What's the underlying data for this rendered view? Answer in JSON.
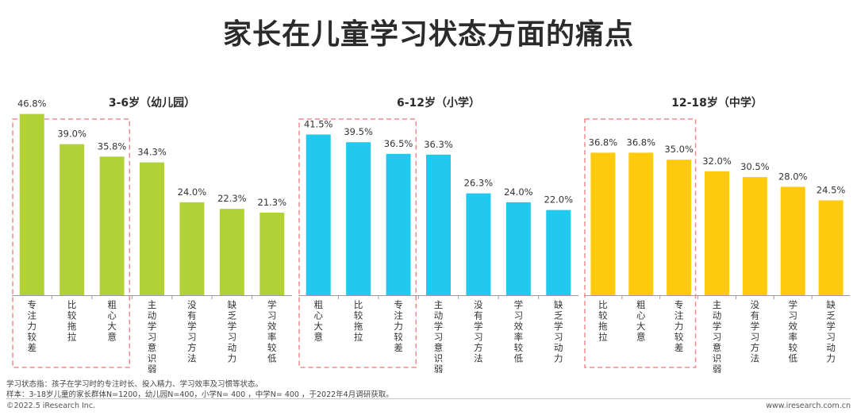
{
  "title": "家长在儿童学习状态方面的痛点",
  "chart_data": [
    {
      "type": "bar",
      "title": "3-6岁（幼儿园）",
      "color": "#b1d136",
      "highlight_count": 3,
      "ylim": [
        0,
        50
      ],
      "categories": [
        "专注力较差",
        "比较拖拉",
        "粗心大意",
        "主动学习意识弱",
        "没有学习方法",
        "缺乏学习动力",
        "学习效率较低"
      ],
      "values": [
        46.8,
        39.0,
        35.8,
        34.3,
        24.0,
        22.3,
        21.3
      ],
      "labels": [
        "46.8%",
        "39.0%",
        "35.8%",
        "34.3%",
        "24.0%",
        "22.3%",
        "21.3%"
      ]
    },
    {
      "type": "bar",
      "title": "6-12岁（小学）",
      "color": "#21c9ef",
      "highlight_count": 3,
      "ylim": [
        0,
        50
      ],
      "categories": [
        "粗心大意",
        "比较拖拉",
        "专注力较差",
        "主动学习意识弱",
        "没有学习方法",
        "学习效率较低",
        "缺乏学习动力"
      ],
      "values": [
        41.5,
        39.5,
        36.5,
        36.3,
        26.3,
        24.0,
        22.0
      ],
      "labels": [
        "41.5%",
        "39.5%",
        "36.5%",
        "36.3%",
        "26.3%",
        "24.0%",
        "22.0%"
      ]
    },
    {
      "type": "bar",
      "title": "12-18岁（中学）",
      "color": "#ffc90e",
      "highlight_count": 3,
      "ylim": [
        0,
        50
      ],
      "categories": [
        "比较拖拉",
        "粗心大意",
        "专注力较差",
        "主动学习意识弱",
        "没有学习方法",
        "学习效率较低",
        "缺乏学习动力"
      ],
      "values": [
        36.8,
        36.8,
        35.0,
        32.0,
        30.5,
        28.0,
        24.5
      ],
      "labels": [
        "36.8%",
        "36.8%",
        "35.0%",
        "32.0%",
        "30.5%",
        "28.0%",
        "24.5%"
      ]
    }
  ],
  "notes": {
    "definition": "学习状态指：孩子在学习时的专注时长、投入精力、学习效率及习惯等状态。",
    "sample": "样本：3-18岁儿童的家长群体N=1200，幼儿园N=400，小学N= 400 ，中学N= 400 ，于2022年4月调研获取。"
  },
  "footer": {
    "copyright": "©2022.5 iResearch Inc.",
    "website": "www.iresearch.com.cn"
  }
}
